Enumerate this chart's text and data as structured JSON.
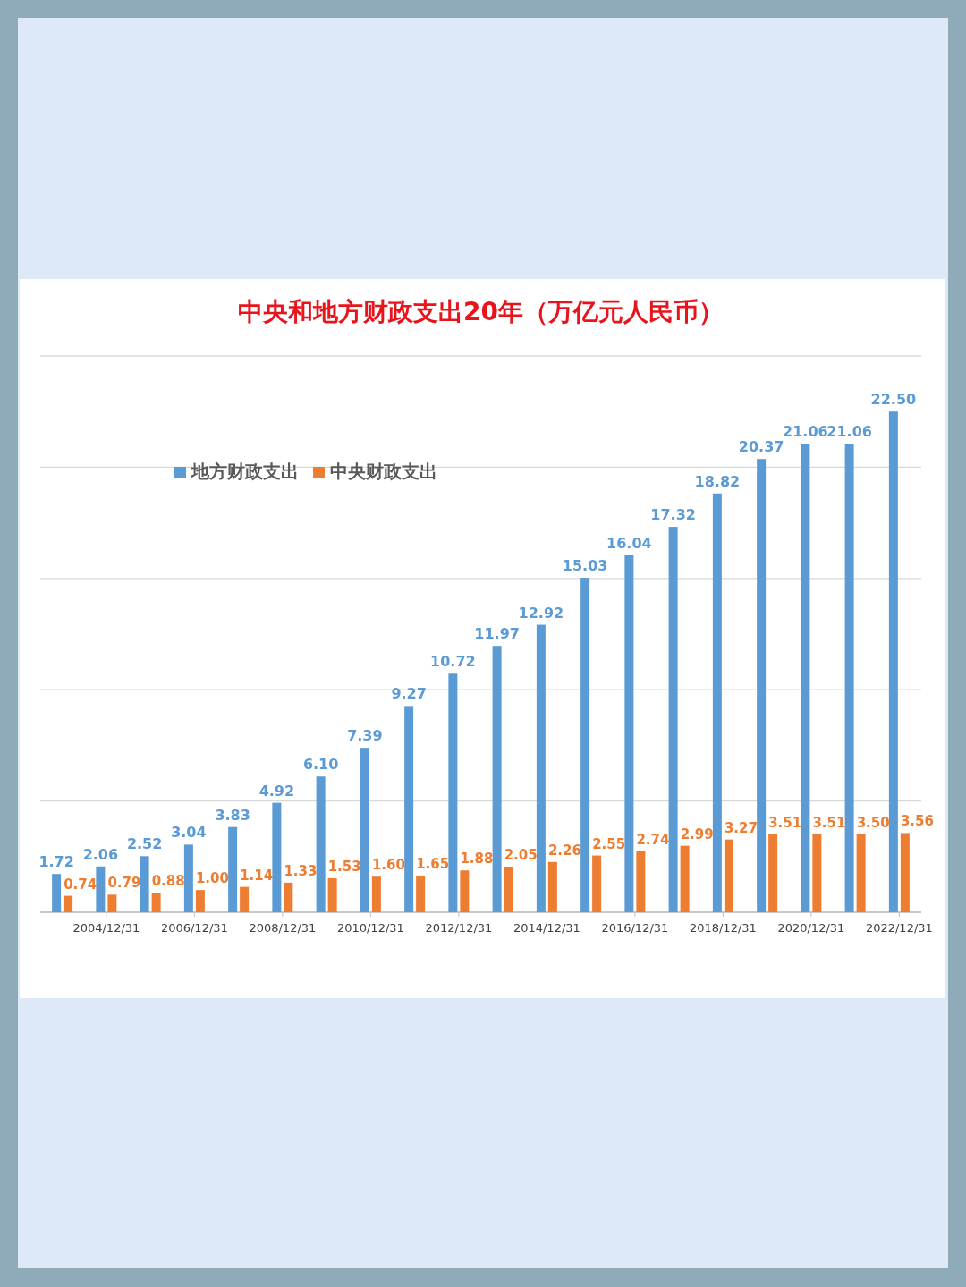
{
  "chart_data": {
    "type": "bar",
    "title": "中央和地方财政支出20年（万亿元人民币）",
    "categories": [
      null,
      "2004/12/31",
      null,
      "2006/12/31",
      null,
      "2008/12/31",
      null,
      "2010/12/31",
      null,
      "2012/12/31",
      null,
      "2014/12/31",
      null,
      "2016/12/31",
      null,
      "2018/12/31",
      null,
      "2020/12/31",
      null,
      "2022/12/31"
    ],
    "series": [
      {
        "name": "地方财政支出",
        "color": "#5b9bd5",
        "values": [
          1.72,
          2.06,
          2.52,
          3.04,
          3.83,
          4.92,
          6.1,
          7.39,
          9.27,
          10.72,
          11.97,
          12.92,
          15.03,
          16.04,
          17.32,
          18.82,
          20.37,
          21.06,
          21.06,
          22.5
        ],
        "value_labels": [
          "1.72",
          "2.06",
          "2.52",
          "3.04",
          "3.83",
          "4.92",
          "6.10",
          "7.39",
          "9.27",
          "10.72",
          "11.97",
          "12.92",
          "15.03",
          "16.04",
          "17.32",
          "18.82",
          "20.37",
          "21.06",
          "21.06",
          "22.50"
        ]
      },
      {
        "name": "中央财政支出",
        "color": "#ed7d31",
        "values": [
          0.74,
          0.79,
          0.88,
          1.0,
          1.14,
          1.33,
          1.53,
          1.6,
          1.65,
          1.88,
          2.05,
          2.26,
          2.55,
          2.74,
          2.99,
          3.27,
          3.51,
          3.51,
          3.5,
          3.56
        ],
        "value_labels": [
          "0.74",
          "0.79",
          "0.88",
          "1.00",
          "1.14",
          "1.33",
          "1.53",
          "1.60",
          "1.65",
          "1.88",
          "2.05",
          "2.26",
          "2.55",
          "2.74",
          "2.99",
          "3.27",
          "3.51",
          "3.51",
          "3.50",
          "3.56"
        ]
      }
    ],
    "ylim": [
      0,
      25
    ],
    "yticks": [
      {
        "value": 0,
        "label": null
      },
      {
        "value": 5,
        "label": null
      },
      {
        "value": 10,
        "label": null
      },
      {
        "value": 15,
        "label": null
      },
      {
        "value": 20,
        "label": null
      },
      {
        "value": 25,
        "label": null
      }
    ],
    "tick_labels": "x",
    "grid": "y",
    "legend": "top left"
  }
}
